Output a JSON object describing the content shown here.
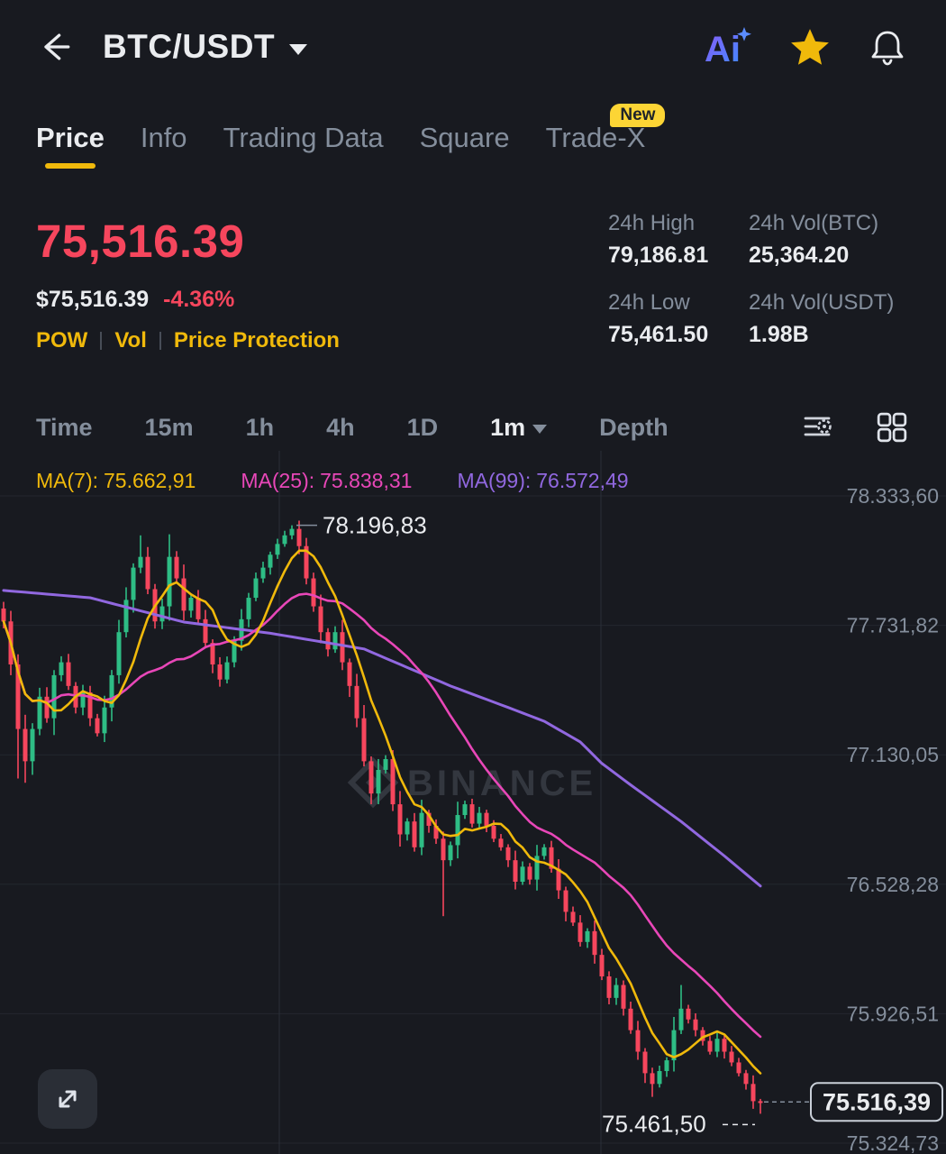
{
  "header": {
    "title": "BTC/USDT",
    "actions": {
      "ai": "Ai"
    }
  },
  "tabs": [
    {
      "label": "Price",
      "active": true
    },
    {
      "label": "Info"
    },
    {
      "label": "Trading Data"
    },
    {
      "label": "Square"
    },
    {
      "label": "Trade-X",
      "badge": "New"
    }
  ],
  "price_panel": {
    "last_price": "75,516.39",
    "fiat_price": "$75,516.39",
    "change_pct": "-4.36%",
    "tags": [
      "POW",
      "Vol",
      "Price Protection"
    ],
    "stats": [
      {
        "label": "24h High",
        "value": "79,186.81"
      },
      {
        "label": "24h Vol(BTC)",
        "value": "25,364.20"
      },
      {
        "label": "24h Low",
        "value": "75,461.50"
      },
      {
        "label": "24h Vol(USDT)",
        "value": "1.98B"
      }
    ]
  },
  "toolbar": {
    "intervals": [
      "Time",
      "15m",
      "1h",
      "4h",
      "1D"
    ],
    "selected_interval": "1m",
    "depth": "Depth"
  },
  "ma_row": [
    {
      "label": "MA(7):",
      "value": "75.662,91"
    },
    {
      "label": "MA(25):",
      "value": "75.838,31"
    },
    {
      "label": "MA(99):",
      "value": "76.572,49"
    }
  ],
  "chart_data": {
    "type": "candlestick",
    "interval": "1m",
    "watermark": "BINANCE",
    "y_axis": [
      {
        "label": "78.333,60",
        "price": 78333.6
      },
      {
        "label": "77.731,82",
        "price": 77731.82
      },
      {
        "label": "77.130,05",
        "price": 77130.05
      },
      {
        "label": "76.528,28",
        "price": 76528.28
      },
      {
        "label": "75.926,51",
        "price": 75926.51
      },
      {
        "label": "75.324,73",
        "price": 75324.73
      }
    ],
    "v_gridlines": [
      310,
      667
    ],
    "closes": [
      77750,
      77550,
      77250,
      77100,
      77250,
      77400,
      77300,
      77500,
      77560,
      77450,
      77350,
      77420,
      77300,
      77230,
      77350,
      77500,
      77700,
      77850,
      78000,
      78050,
      77900,
      77750,
      77820,
      78050,
      77950,
      77800,
      77860,
      77760,
      77650,
      77550,
      77480,
      77560,
      77660,
      77760,
      77860,
      77950,
      78000,
      78060,
      78110,
      78150,
      78180,
      78100,
      77950,
      77820,
      77700,
      77620,
      77700,
      77560,
      77450,
      77300,
      77100,
      76950,
      77060,
      77110,
      76900,
      76760,
      76820,
      76700,
      76860,
      76800,
      76740,
      76640,
      76710,
      76850,
      76900,
      76810,
      76860,
      76800,
      76740,
      76700,
      76640,
      76540,
      76610,
      76550,
      76660,
      76700,
      76600,
      76500,
      76400,
      76350,
      76260,
      76310,
      76200,
      76100,
      76000,
      76060,
      75950,
      75850,
      75750,
      75650,
      75600,
      75660,
      75710,
      75850,
      75950,
      75900,
      75850,
      75800,
      75750,
      75810,
      75750,
      75700,
      75650,
      75600,
      75520,
      75516.39
    ],
    "wick_highs": {
      "19": 78150,
      "23": 78155,
      "40": 78196.83,
      "94": 76060
    },
    "wick_lows": {
      "2": 77020,
      "3": 77000,
      "61": 76380,
      "90": 75540,
      "105": 75461.5
    },
    "ma99_points": [
      [
        0,
        77894
      ],
      [
        12,
        77860
      ],
      [
        25,
        77747
      ],
      [
        37,
        77695
      ],
      [
        50,
        77622
      ],
      [
        62,
        77450
      ],
      [
        70,
        77350
      ],
      [
        75,
        77286
      ],
      [
        80,
        77190
      ],
      [
        83,
        77090
      ],
      [
        87,
        76990
      ],
      [
        94,
        76820
      ],
      [
        100,
        76660
      ],
      [
        105,
        76520
      ]
    ],
    "annotations": {
      "high": {
        "label": "78.196,83",
        "price": 78196.83,
        "index": 40
      },
      "low": {
        "label": "75.461,50",
        "price": 75461.5
      },
      "last": {
        "label": "75.516,39",
        "price": 75516.39
      }
    }
  },
  "colors": {
    "bg": "#181a20",
    "up": "#2ebd85",
    "down": "#f6465d",
    "accent": "#f0b90b",
    "text": "#eaecef",
    "muted": "#848e9c",
    "grid": "#23272e",
    "vgrid": "#2a2f38",
    "ma7": "#f0b90b",
    "ma25": "#e847b8",
    "ma99": "#9168e0",
    "watermark": "#848e9c"
  }
}
